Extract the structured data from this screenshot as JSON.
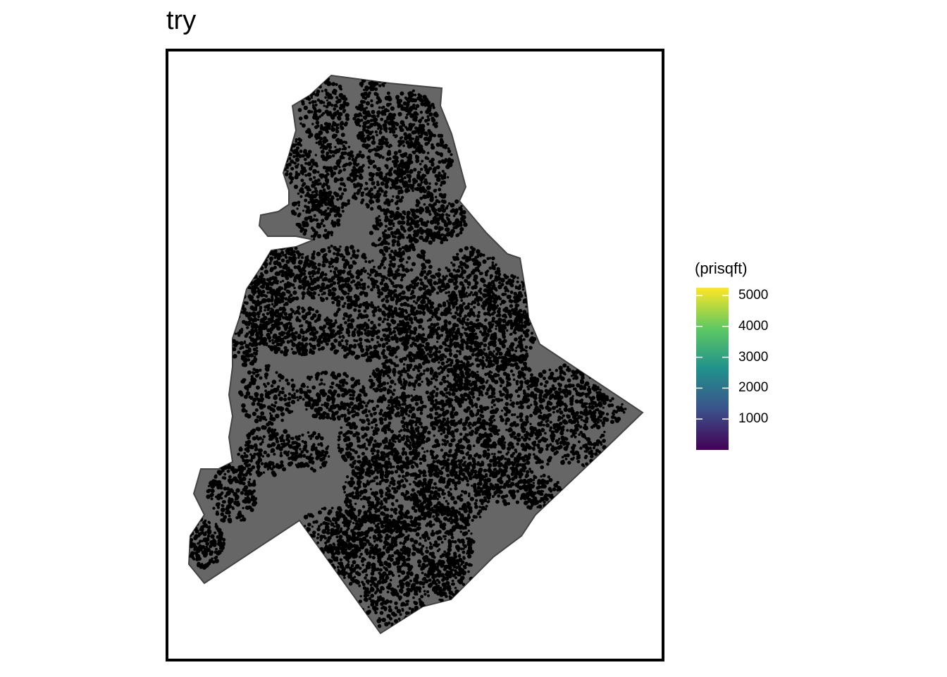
{
  "title": "try",
  "legend": {
    "title": "(prisqft)",
    "ticks": [
      "1000",
      "2000",
      "3000",
      "4000",
      "5000"
    ],
    "tick_values": [
      1000,
      2000,
      3000,
      4000,
      5000
    ],
    "range": [
      0,
      5250
    ],
    "palette": "viridis",
    "colors": [
      "#440154",
      "#3b528b",
      "#21918c",
      "#5ec962",
      "#fde725"
    ]
  },
  "map": {
    "fill_color": "#666666",
    "border_color": "#444444",
    "point_color": "#000000",
    "frame_color": "#000000"
  }
}
